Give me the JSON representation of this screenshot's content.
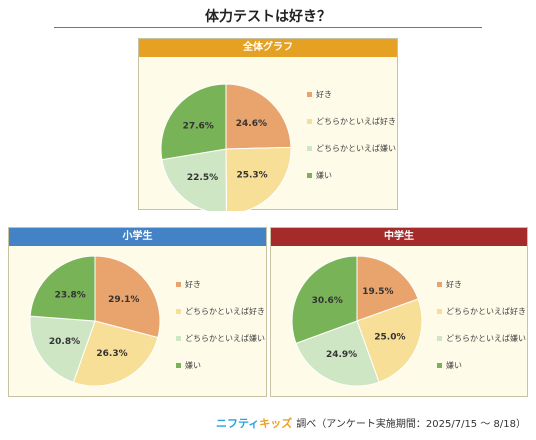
{
  "page": {
    "title": "体力テストは好き？",
    "footer_brand_part1": "ニフティ",
    "footer_brand_part2": "キッズ",
    "footer_text": "調べ（アンケート実施期間：2025/7/15 ～ 8/18）"
  },
  "colors": {
    "like": "#e9a46d",
    "somewhat_like": "#f8df97",
    "somewhat_dislike": "#cfe6c4",
    "dislike": "#79b357",
    "header_all": "#e5a123",
    "header_elementary": "#4382c4",
    "header_junior": "#a52a2a"
  },
  "chart_data": [
    {
      "type": "pie",
      "title": "全体グラフ",
      "categories": [
        "好き",
        "どちらかといえば好き",
        "どちらかといえば嫌い",
        "嫌い"
      ],
      "values": [
        24.6,
        25.3,
        22.5,
        27.6
      ],
      "labels": [
        "24.6%",
        "25.3%",
        "22.5%",
        "27.6%"
      ]
    },
    {
      "type": "pie",
      "title": "小学生",
      "categories": [
        "好き",
        "どちらかといえば好き",
        "どちらかといえば嫌い",
        "嫌い"
      ],
      "values": [
        29.1,
        26.3,
        20.8,
        23.8
      ],
      "labels": [
        "29.1%",
        "26.3%",
        "20.8%",
        "23.8%"
      ]
    },
    {
      "type": "pie",
      "title": "中学生",
      "categories": [
        "好き",
        "どちらかといえば好き",
        "どちらかといえば嫌い",
        "嫌い"
      ],
      "values": [
        19.5,
        25.0,
        24.9,
        30.6
      ],
      "labels": [
        "19.5%",
        "25.0%",
        "24.9%",
        "30.6%"
      ]
    }
  ]
}
